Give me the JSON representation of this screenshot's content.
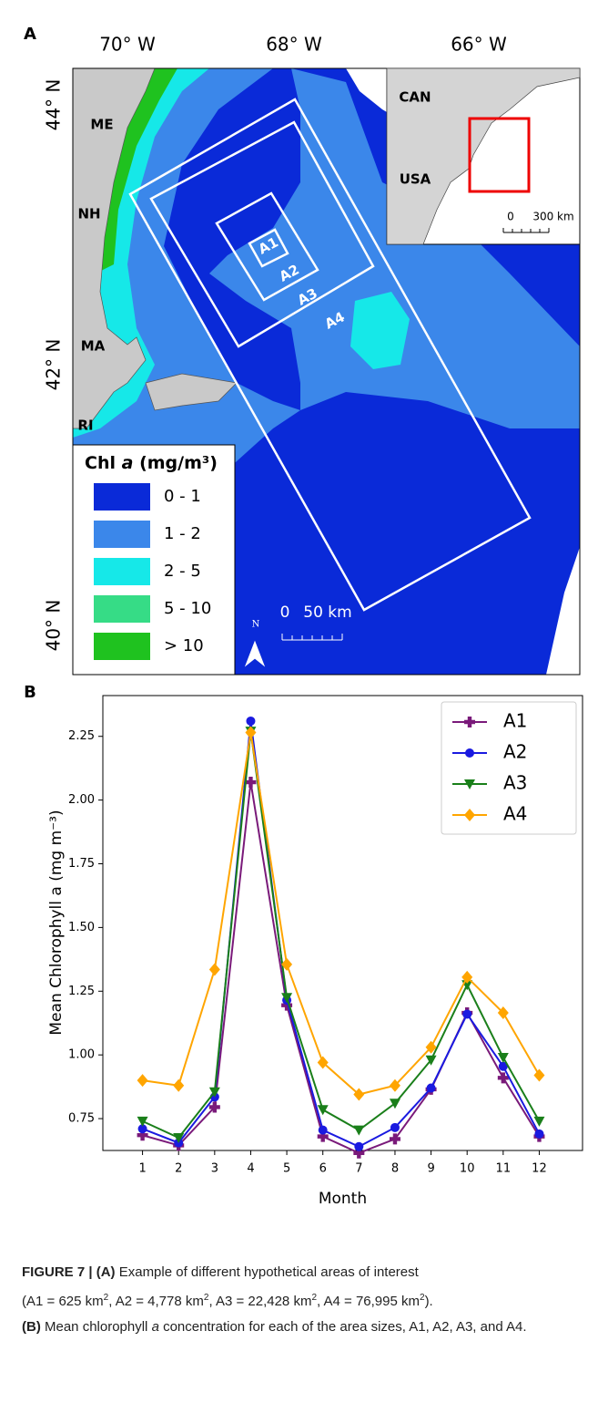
{
  "map": {
    "panel": "A",
    "lon_labels": [
      "70° W",
      "68° W",
      "66° W"
    ],
    "lat_labels": [
      "44° N",
      "42° N",
      "40° N"
    ],
    "states": [
      "ME",
      "NH",
      "MA",
      "RI"
    ],
    "areas": [
      "A1",
      "A2",
      "A3",
      "A4"
    ],
    "legend": {
      "title": "Chl",
      "title_italic": "a",
      "title_unit": "(mg/m³)",
      "items": [
        {
          "label": "0 - 1",
          "color": "#0a2ad8"
        },
        {
          "label": "1 - 2",
          "color": "#3b87ea"
        },
        {
          "label": "2 - 5",
          "color": "#16e8e8"
        },
        {
          "label": "5 - 10",
          "color": "#36dc86"
        },
        {
          "label": "> 10",
          "color": "#1fc21f"
        }
      ]
    },
    "inset": {
      "labels": [
        "CAN",
        "USA"
      ],
      "scale": [
        "0",
        "300 km"
      ]
    },
    "scale": [
      "0",
      "50 km"
    ],
    "north": "N"
  },
  "chart_data": {
    "type": "line",
    "panel": "B",
    "xlabel": "Month",
    "ylabel": "Mean Chlorophyll a (mg m⁻³)",
    "x": [
      1,
      2,
      3,
      4,
      5,
      6,
      7,
      8,
      9,
      10,
      11,
      12
    ],
    "xlim": [
      -0.1,
      13.2
    ],
    "xticks": [
      1,
      2,
      3,
      4,
      5,
      6,
      7,
      8,
      9,
      10,
      11,
      12
    ],
    "ylim": [
      0.625,
      2.41
    ],
    "yticks": [
      0.75,
      {
        "value": 1,
        "label": "1.00"
      },
      1.25,
      {
        "value": 1.5,
        "label": "1.50"
      },
      1.75,
      {
        "value": 2,
        "label": "2.00"
      },
      2.25
    ],
    "legend": "upper right",
    "series": [
      {
        "name": "A1",
        "color": "#7a1a7a",
        "marker": "plus",
        "values": [
          0.685,
          0.645,
          0.795,
          2.07,
          1.195,
          0.68,
          0.615,
          0.67,
          0.865,
          1.165,
          0.91,
          0.68
        ]
      },
      {
        "name": "A2",
        "color": "#1a1ae0",
        "marker": "circle",
        "values": [
          0.71,
          0.655,
          0.835,
          2.31,
          1.215,
          0.705,
          0.64,
          0.715,
          0.87,
          1.16,
          0.955,
          0.69
        ]
      },
      {
        "name": "A3",
        "color": "#1a7f1a",
        "marker": "triangle",
        "values": [
          0.74,
          0.675,
          0.855,
          2.27,
          1.225,
          0.785,
          0.705,
          0.81,
          0.98,
          1.275,
          0.99,
          0.74
        ]
      },
      {
        "name": "A4",
        "color": "#ffa500",
        "marker": "diamond",
        "values": [
          0.9,
          0.88,
          1.335,
          2.265,
          1.355,
          0.97,
          0.845,
          0.88,
          1.03,
          1.305,
          1.165,
          0.92
        ]
      }
    ]
  },
  "caption": {
    "label": "FIGURE 7 |",
    "a_tag": "(A)",
    "a_text": "Example of different hypothetical areas of interest",
    "areas": [
      {
        "text": "A1 = 625 km",
        "sup": "2"
      },
      {
        "text": "A2 = 4,778 km",
        "sup": "2"
      },
      {
        "text": "A3 = 22,428 km",
        "sup": "2"
      },
      {
        "text": "A4 = 76,995 km",
        "sup": "2"
      }
    ],
    "b_tag": "(B)",
    "b_text1": "Mean chlorophyll",
    "b_italic": "a",
    "b_text2": "concentration for each of the area sizes, A1, A2, A3, and A4."
  }
}
